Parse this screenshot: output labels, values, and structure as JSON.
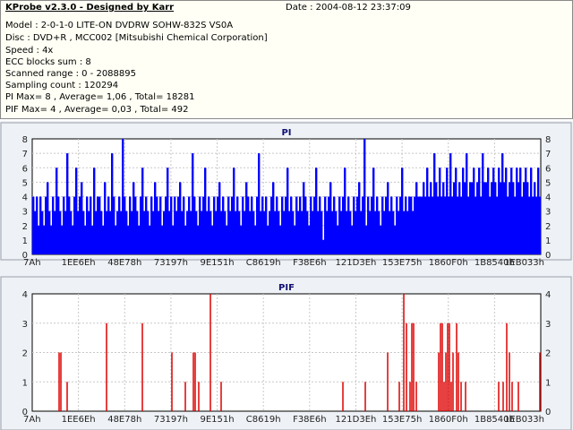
{
  "header": {
    "app_title": "KProbe v2.3.0 - Designed by Karr",
    "date": "Date : 2004-08-12 23:37:09"
  },
  "info_lines": [
    "Model : 2-0-1-0 LITE-ON DVDRW SOHW-832S  VS0A",
    "Disc : DVD+R , MCC002 [Mitsubishi Chemical Corporation]",
    "Speed : 4x",
    "ECC blocks sum : 8",
    "Scanned range : 0 - 2088895",
    "Sampling count : 120294",
    "PI Max= 8 , Average= 1,06 , Total= 18281",
    "PIF Max= 4 , Average= 0,03 , Total= 492"
  ],
  "chart_data": [
    {
      "type": "bar",
      "title": "PI",
      "color": "#0000ff",
      "ylim": [
        0,
        8
      ],
      "y_ticks": [
        0,
        1,
        2,
        3,
        4,
        5,
        6,
        7,
        8
      ],
      "x_tick_labels": [
        "7Ah",
        "1EE6Eh",
        "48E78h",
        "73197h",
        "9E151h",
        "C8619h",
        "F38E6h",
        "121D3Eh",
        "153E75h",
        "1860F0h",
        "1B8540h",
        "1EB033h"
      ],
      "grid": true,
      "values": [
        4,
        3,
        4,
        2,
        4,
        3,
        2,
        4,
        5,
        3,
        2,
        4,
        3,
        6,
        4,
        3,
        2,
        4,
        3,
        7,
        4,
        3,
        2,
        4,
        6,
        3,
        4,
        5,
        3,
        2,
        4,
        3,
        4,
        2,
        6,
        3,
        4,
        4,
        3,
        2,
        5,
        3,
        4,
        3,
        7,
        4,
        2,
        3,
        4,
        3,
        8,
        4,
        3,
        2,
        4,
        3,
        5,
        4,
        3,
        2,
        4,
        6,
        3,
        4,
        3,
        2,
        4,
        3,
        5,
        4,
        3,
        4,
        2,
        3,
        4,
        6,
        3,
        4,
        2,
        4,
        3,
        4,
        5,
        3,
        4,
        2,
        3,
        4,
        3,
        7,
        4,
        3,
        2,
        4,
        3,
        4,
        6,
        3,
        4,
        3,
        2,
        4,
        3,
        4,
        5,
        3,
        4,
        3,
        2,
        4,
        3,
        4,
        6,
        3,
        4,
        3,
        2,
        4,
        3,
        5,
        4,
        3,
        4,
        3,
        2,
        4,
        7,
        3,
        4,
        3,
        4,
        2,
        3,
        4,
        5,
        3,
        4,
        3,
        2,
        4,
        3,
        4,
        6,
        3,
        4,
        3,
        2,
        4,
        3,
        4,
        3,
        5,
        4,
        3,
        2,
        4,
        3,
        4,
        6,
        3,
        4,
        3,
        1,
        4,
        3,
        4,
        5,
        3,
        4,
        3,
        2,
        4,
        3,
        4,
        6,
        3,
        4,
        3,
        2,
        4,
        3,
        4,
        5,
        3,
        4,
        8,
        2,
        4,
        3,
        4,
        6,
        3,
        4,
        3,
        2,
        4,
        3,
        4,
        5,
        3,
        4,
        3,
        2,
        4,
        3,
        4,
        6,
        3,
        4,
        3,
        4,
        4,
        3,
        4,
        5,
        4,
        4,
        4,
        5,
        4,
        6,
        4,
        5,
        4,
        7,
        5,
        4,
        6,
        4,
        5,
        4,
        6,
        4,
        7,
        4,
        5,
        6,
        4,
        5,
        4,
        6,
        5,
        7,
        4,
        5,
        5,
        6,
        4,
        5,
        6,
        4,
        7,
        5,
        5,
        6,
        4,
        5,
        6,
        5,
        4,
        6,
        5,
        7,
        5,
        6,
        4,
        5,
        6,
        5,
        4,
        6,
        5,
        6,
        4,
        5,
        6,
        5,
        4,
        6,
        4,
        5,
        4,
        6,
        4
      ]
    },
    {
      "type": "bar",
      "title": "PIF",
      "color": "#dd0000",
      "ylim": [
        0,
        4
      ],
      "y_ticks": [
        0,
        1,
        2,
        3,
        4
      ],
      "x_tick_labels": [
        "7Ah",
        "1EE6Eh",
        "48E78h",
        "73197h",
        "9E151h",
        "C8619h",
        "F38E6h",
        "121D3Eh",
        "153E75h",
        "1860F0h",
        "1B8540h",
        "1EB033h"
      ],
      "grid": true,
      "x_range": [
        36,
        604
      ],
      "points": [
        [
          66,
          2
        ],
        [
          68,
          2
        ],
        [
          75,
          1
        ],
        [
          119,
          3
        ],
        [
          159,
          3
        ],
        [
          192,
          2
        ],
        [
          207,
          1
        ],
        [
          216,
          2
        ],
        [
          218,
          2
        ],
        [
          222,
          1
        ],
        [
          235,
          4
        ],
        [
          247,
          1
        ],
        [
          383,
          1
        ],
        [
          408,
          1
        ],
        [
          433,
          2
        ],
        [
          446,
          1
        ],
        [
          451,
          4
        ],
        [
          454,
          3
        ],
        [
          458,
          1
        ],
        [
          460,
          3
        ],
        [
          462,
          3
        ],
        [
          465,
          1
        ],
        [
          490,
          2
        ],
        [
          492,
          3
        ],
        [
          494,
          3
        ],
        [
          496,
          1
        ],
        [
          498,
          2
        ],
        [
          500,
          3
        ],
        [
          502,
          3
        ],
        [
          504,
          1
        ],
        [
          506,
          2
        ],
        [
          510,
          3
        ],
        [
          512,
          2
        ],
        [
          515,
          1
        ],
        [
          520,
          1
        ],
        [
          557,
          1
        ],
        [
          562,
          1
        ],
        [
          566,
          3
        ],
        [
          569,
          2
        ],
        [
          572,
          1
        ],
        [
          579,
          1
        ],
        [
          603,
          2
        ]
      ]
    }
  ]
}
